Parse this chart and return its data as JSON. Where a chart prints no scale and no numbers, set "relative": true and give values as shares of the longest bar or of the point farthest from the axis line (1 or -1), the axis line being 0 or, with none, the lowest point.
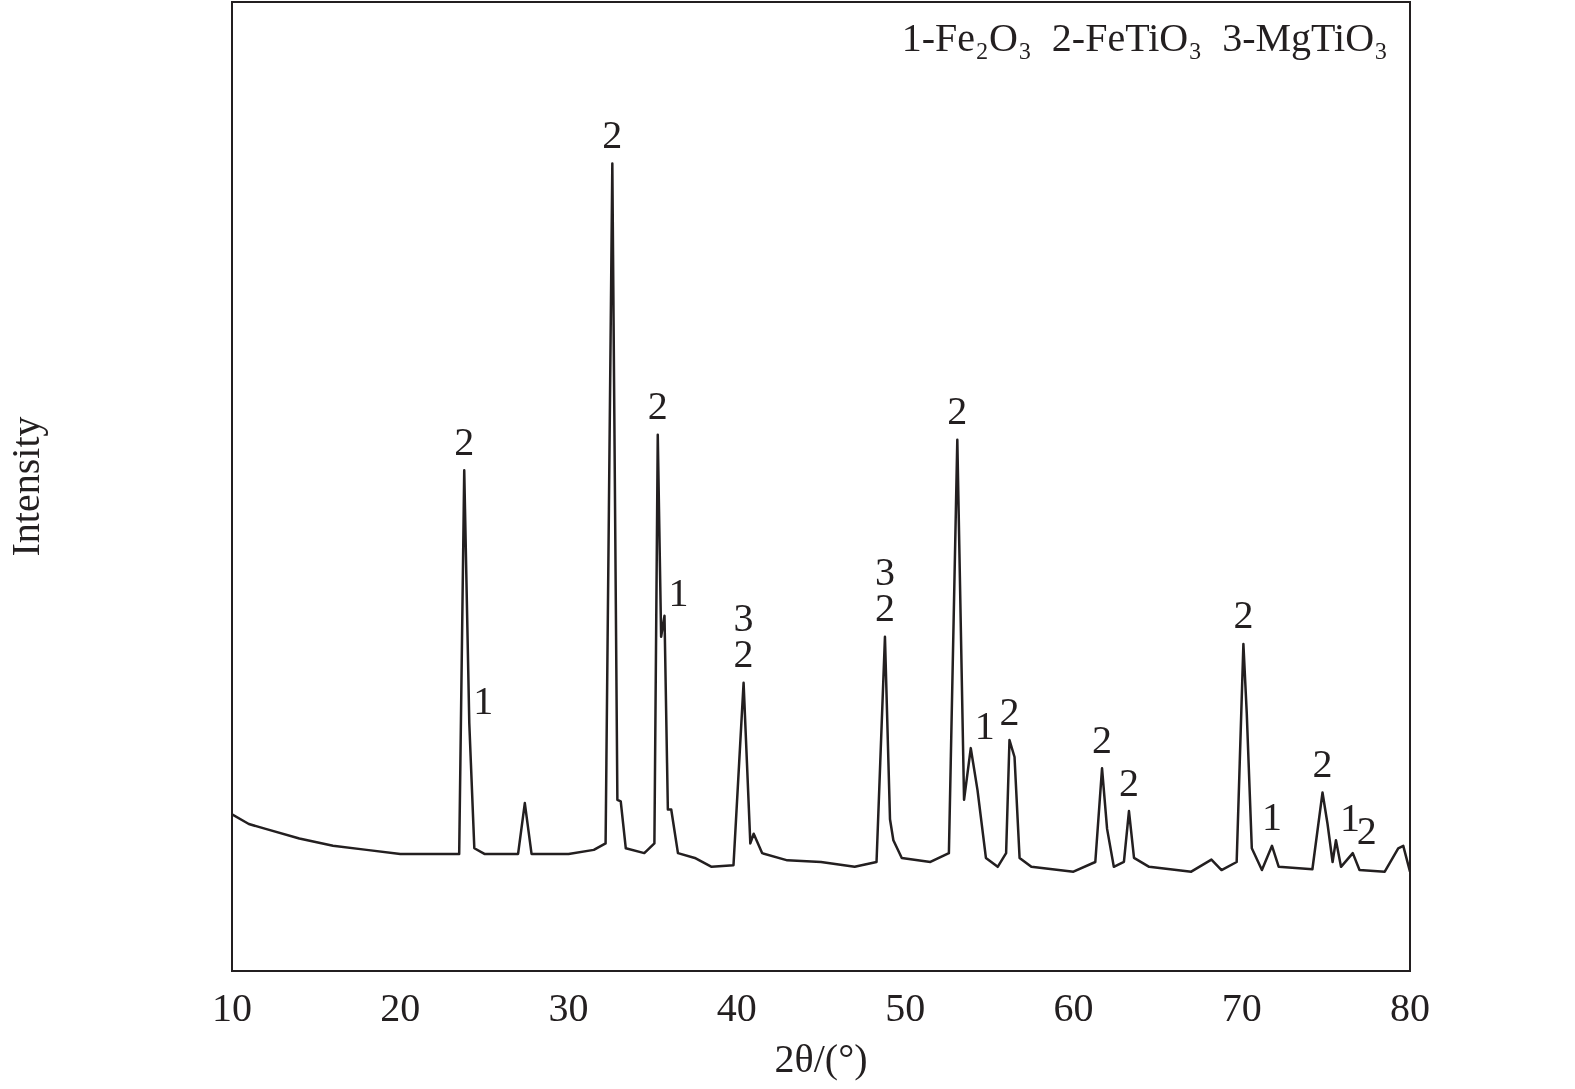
{
  "chart_data": {
    "type": "line",
    "relative": true,
    "xlabel": "2θ/(°)",
    "ylabel": "Intensity",
    "xlim": [
      10,
      80
    ],
    "xticks": [
      10,
      20,
      30,
      40,
      50,
      60,
      70,
      80
    ],
    "grid": false,
    "legend": false,
    "marker": "none",
    "line_style": "solid",
    "series": [
      {
        "color": "#231f20",
        "x": [
          10,
          11,
          12,
          14,
          16,
          18,
          20,
          22,
          23.5,
          23.8,
          24.1,
          24.4,
          25,
          27,
          27.4,
          27.8,
          30,
          31.5,
          32.2,
          32.6,
          32.9,
          33.1,
          33.4,
          34.5,
          35.1,
          35.3,
          35.5,
          35.7,
          35.9,
          36.1,
          36.5,
          37.5,
          38.5,
          39.8,
          40.4,
          40.8,
          41,
          41.5,
          43,
          45,
          47,
          48.3,
          48.8,
          49.1,
          49.3,
          49.8,
          51.5,
          52.6,
          53.1,
          53.5,
          53.9,
          54.3,
          54.8,
          55.5,
          56,
          56.2,
          56.5,
          56.8,
          57.5,
          60,
          61.3,
          61.7,
          62,
          62.4,
          63,
          63.3,
          63.6,
          64.5,
          67,
          68.2,
          68.8,
          69.7,
          70.1,
          70.3,
          70.6,
          71.2,
          71.8,
          72.2,
          74.2,
          74.8,
          75.1,
          75.4,
          75.6,
          75.9,
          76.6,
          77,
          78.5,
          79.3,
          79.6,
          80
        ],
        "values": [
          0.194,
          0.182,
          0.176,
          0.164,
          0.155,
          0.15,
          0.145,
          0.145,
          0.145,
          0.62,
          0.307,
          0.152,
          0.145,
          0.145,
          0.208,
          0.145,
          0.145,
          0.15,
          0.158,
          1.0,
          0.212,
          0.21,
          0.152,
          0.146,
          0.158,
          0.664,
          0.414,
          0.44,
          0.2,
          0.2,
          0.146,
          0.14,
          0.129,
          0.131,
          0.357,
          0.158,
          0.17,
          0.146,
          0.137,
          0.135,
          0.129,
          0.135,
          0.414,
          0.188,
          0.162,
          0.14,
          0.135,
          0.146,
          0.658,
          0.212,
          0.276,
          0.224,
          0.14,
          0.129,
          0.146,
          0.286,
          0.265,
          0.14,
          0.129,
          0.123,
          0.135,
          0.251,
          0.176,
          0.129,
          0.135,
          0.198,
          0.14,
          0.129,
          0.123,
          0.138,
          0.125,
          0.135,
          0.405,
          0.319,
          0.152,
          0.125,
          0.155,
          0.129,
          0.126,
          0.221,
          0.182,
          0.135,
          0.162,
          0.129,
          0.146,
          0.125,
          0.123,
          0.152,
          0.155,
          0.123
        ]
      }
    ],
    "annotations": [
      "1-Fe₂O₃  2-FeTiO₃  3-MgTiO₃",
      {
        "text": "2",
        "x": 23.8,
        "y": 0.62
      },
      {
        "text": "1",
        "x": 24.1,
        "y": 0.307
      },
      {
        "text": "2",
        "x": 32.6,
        "y": 1.0
      },
      {
        "text": "2",
        "x": 35.3,
        "y": 0.664
      },
      {
        "text": "1",
        "x": 35.7,
        "y": 0.44
      },
      {
        "text": "2",
        "x": 40.4,
        "y": 0.357
      },
      {
        "text": "3",
        "x": 40.4,
        "y": 0.357
      },
      {
        "text": "2",
        "x": 48.8,
        "y": 0.414
      },
      {
        "text": "3",
        "x": 48.8,
        "y": 0.414
      },
      {
        "text": "2",
        "x": 53.1,
        "y": 0.658
      },
      {
        "text": "1",
        "x": 53.9,
        "y": 0.276
      },
      {
        "text": "2",
        "x": 56.2,
        "y": 0.286
      },
      {
        "text": "2",
        "x": 61.7,
        "y": 0.251
      },
      {
        "text": "2",
        "x": 63.3,
        "y": 0.198
      },
      {
        "text": "2",
        "x": 70.1,
        "y": 0.405
      },
      {
        "text": "1",
        "x": 71.8,
        "y": 0.155
      },
      {
        "text": "2",
        "x": 74.8,
        "y": 0.221
      },
      {
        "text": "1",
        "x": 75.6,
        "y": 0.162
      },
      {
        "text": "2",
        "x": 76.6,
        "y": 0.146
      }
    ]
  }
}
